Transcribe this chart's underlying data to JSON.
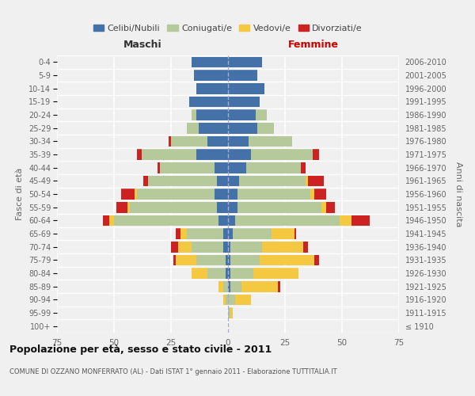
{
  "age_groups": [
    "100+",
    "95-99",
    "90-94",
    "85-89",
    "80-84",
    "75-79",
    "70-74",
    "65-69",
    "60-64",
    "55-59",
    "50-54",
    "45-49",
    "40-44",
    "35-39",
    "30-34",
    "25-29",
    "20-24",
    "15-19",
    "10-14",
    "5-9",
    "0-4"
  ],
  "birth_years": [
    "≤ 1910",
    "1911-1915",
    "1916-1920",
    "1921-1925",
    "1926-1930",
    "1931-1935",
    "1936-1940",
    "1941-1945",
    "1946-1950",
    "1951-1955",
    "1956-1960",
    "1961-1965",
    "1966-1970",
    "1971-1975",
    "1976-1980",
    "1981-1985",
    "1986-1990",
    "1991-1995",
    "1996-2000",
    "2001-2005",
    "2006-2010"
  ],
  "males": {
    "celibi": [
      0,
      0,
      0,
      0,
      1,
      1,
      2,
      2,
      4,
      5,
      6,
      5,
      6,
      14,
      9,
      13,
      14,
      17,
      14,
      15,
      16
    ],
    "coniugati": [
      0,
      0,
      1,
      2,
      8,
      13,
      14,
      16,
      46,
      38,
      34,
      30,
      24,
      24,
      16,
      5,
      2,
      0,
      0,
      0,
      0
    ],
    "vedovi": [
      0,
      0,
      1,
      2,
      7,
      9,
      6,
      3,
      2,
      1,
      1,
      0,
      0,
      0,
      0,
      0,
      0,
      0,
      0,
      0,
      0
    ],
    "divorziati": [
      0,
      0,
      0,
      0,
      0,
      1,
      3,
      2,
      3,
      5,
      6,
      2,
      1,
      2,
      1,
      0,
      0,
      0,
      0,
      0,
      0
    ]
  },
  "females": {
    "nubili": [
      0,
      0,
      0,
      1,
      1,
      1,
      1,
      2,
      3,
      4,
      4,
      5,
      8,
      10,
      9,
      13,
      12,
      14,
      16,
      13,
      15
    ],
    "coniugate": [
      0,
      1,
      3,
      5,
      10,
      13,
      14,
      17,
      46,
      37,
      32,
      29,
      24,
      27,
      19,
      7,
      5,
      0,
      0,
      0,
      0
    ],
    "vedove": [
      0,
      1,
      7,
      16,
      20,
      24,
      18,
      10,
      5,
      2,
      2,
      1,
      0,
      0,
      0,
      0,
      0,
      0,
      0,
      0,
      0
    ],
    "divorziate": [
      0,
      0,
      0,
      1,
      0,
      2,
      2,
      1,
      8,
      4,
      5,
      7,
      2,
      3,
      0,
      0,
      0,
      0,
      0,
      0,
      0
    ]
  },
  "colors": {
    "celibi": "#4472a8",
    "coniugati": "#b5c99a",
    "vedovi": "#f5c842",
    "divorziati": "#cc2222"
  },
  "title": "Popolazione per età, sesso e stato civile - 2011",
  "subtitle": "COMUNE DI OZZANO MONFERRATO (AL) - Dati ISTAT 1° gennaio 2011 - Elaborazione TUTTITALIA.IT",
  "xlabel_left": "Maschi",
  "xlabel_right": "Femmine",
  "ylabel_left": "Fasce di età",
  "ylabel_right": "Anni di nascita",
  "xlim": 75,
  "background_color": "#f0f0f0",
  "legend_labels": [
    "Celibi/Nubili",
    "Coniugati/e",
    "Vedovi/e",
    "Divorziati/e"
  ]
}
